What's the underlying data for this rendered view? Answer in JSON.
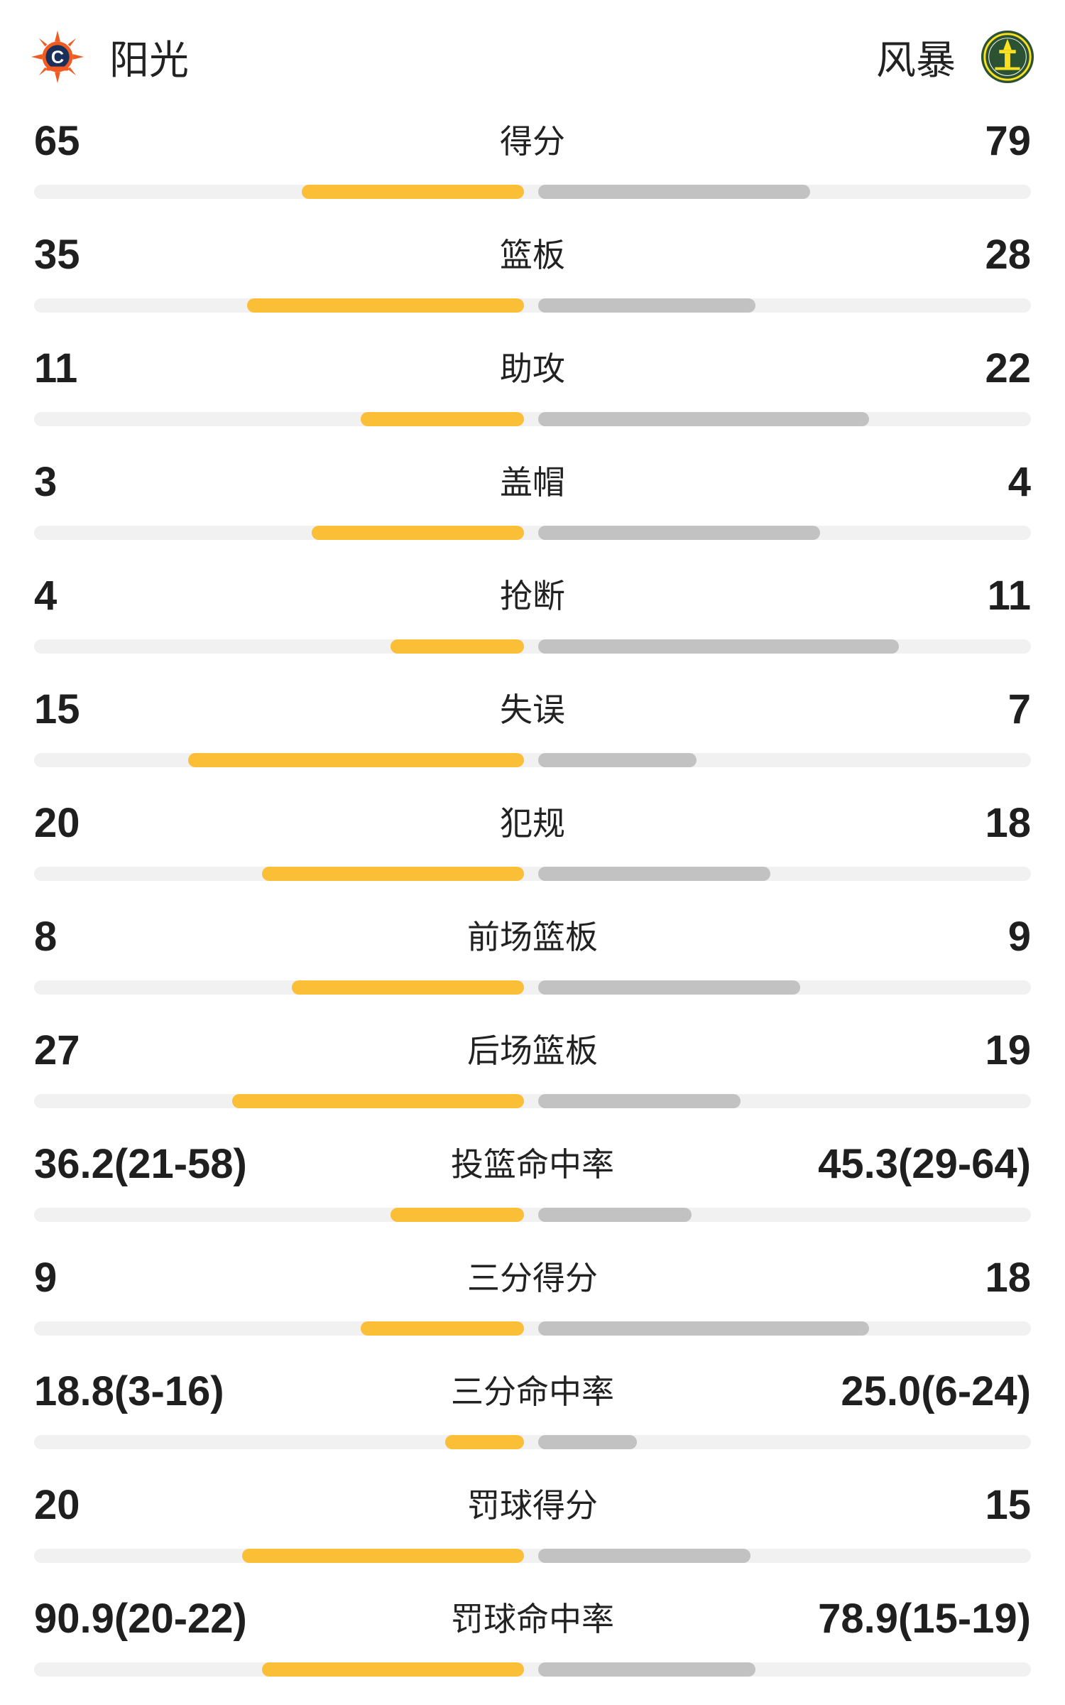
{
  "teams": {
    "home": {
      "name": "阳光",
      "logo_icon": "connecticut-sun-logo",
      "bar_color": "#fbbf37"
    },
    "away": {
      "name": "风暴",
      "logo_icon": "seattle-storm-logo",
      "bar_color": "#c2c2c2"
    }
  },
  "stats": [
    {
      "label": "得分",
      "home": "65",
      "away": "79",
      "home_ratio": 0.45,
      "away_ratio": 0.55
    },
    {
      "label": "篮板",
      "home": "35",
      "away": "28",
      "home_ratio": 0.56,
      "away_ratio": 0.44
    },
    {
      "label": "助攻",
      "home": "11",
      "away": "22",
      "home_ratio": 0.33,
      "away_ratio": 0.67
    },
    {
      "label": "盖帽",
      "home": "3",
      "away": "4",
      "home_ratio": 0.43,
      "away_ratio": 0.57
    },
    {
      "label": "抢断",
      "home": "4",
      "away": "11",
      "home_ratio": 0.27,
      "away_ratio": 0.73
    },
    {
      "label": "失误",
      "home": "15",
      "away": "7",
      "home_ratio": 0.68,
      "away_ratio": 0.32
    },
    {
      "label": "犯规",
      "home": "20",
      "away": "18",
      "home_ratio": 0.53,
      "away_ratio": 0.47
    },
    {
      "label": "前场篮板",
      "home": "8",
      "away": "9",
      "home_ratio": 0.47,
      "away_ratio": 0.53
    },
    {
      "label": "后场篮板",
      "home": "27",
      "away": "19",
      "home_ratio": 0.59,
      "away_ratio": 0.41
    },
    {
      "label": "投篮命中率",
      "home": "36.2(21-58)",
      "away": "45.3(29-64)",
      "home_ratio": 0.27,
      "away_ratio": 0.31
    },
    {
      "label": "三分得分",
      "home": "9",
      "away": "18",
      "home_ratio": 0.33,
      "away_ratio": 0.67
    },
    {
      "label": "三分命中率",
      "home": "18.8(3-16)",
      "away": "25.0(6-24)",
      "home_ratio": 0.16,
      "away_ratio": 0.2
    },
    {
      "label": "罚球得分",
      "home": "20",
      "away": "15",
      "home_ratio": 0.57,
      "away_ratio": 0.43
    },
    {
      "label": "罚球命中率",
      "home": "90.9(20-22)",
      "away": "78.9(15-19)",
      "home_ratio": 0.53,
      "away_ratio": 0.44
    }
  ]
}
